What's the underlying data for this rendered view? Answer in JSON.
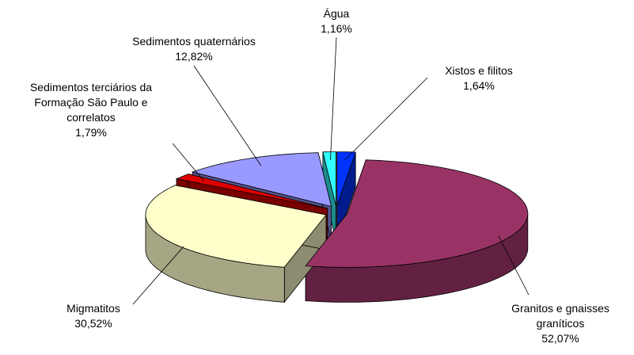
{
  "chart_data": {
    "type": "pie",
    "categories": [
      "Xistos e filitos",
      "Granitos e gnaisses graníticos",
      "Migmatitos",
      "Sedimentos terciários da Formação São Paulo e correlatos",
      "Sedimentos quaternários",
      "Água"
    ],
    "values": [
      1.64,
      52.07,
      30.52,
      1.79,
      12.82,
      1.16
    ],
    "value_labels": [
      "1,64%",
      "52,07%",
      "30,52%",
      "1,79%",
      "12,82%",
      "1,16%"
    ],
    "colors": [
      "#0033ff",
      "#993366",
      "#ffffcc",
      "#dd0000",
      "#9999ff",
      "#33ffff"
    ]
  }
}
